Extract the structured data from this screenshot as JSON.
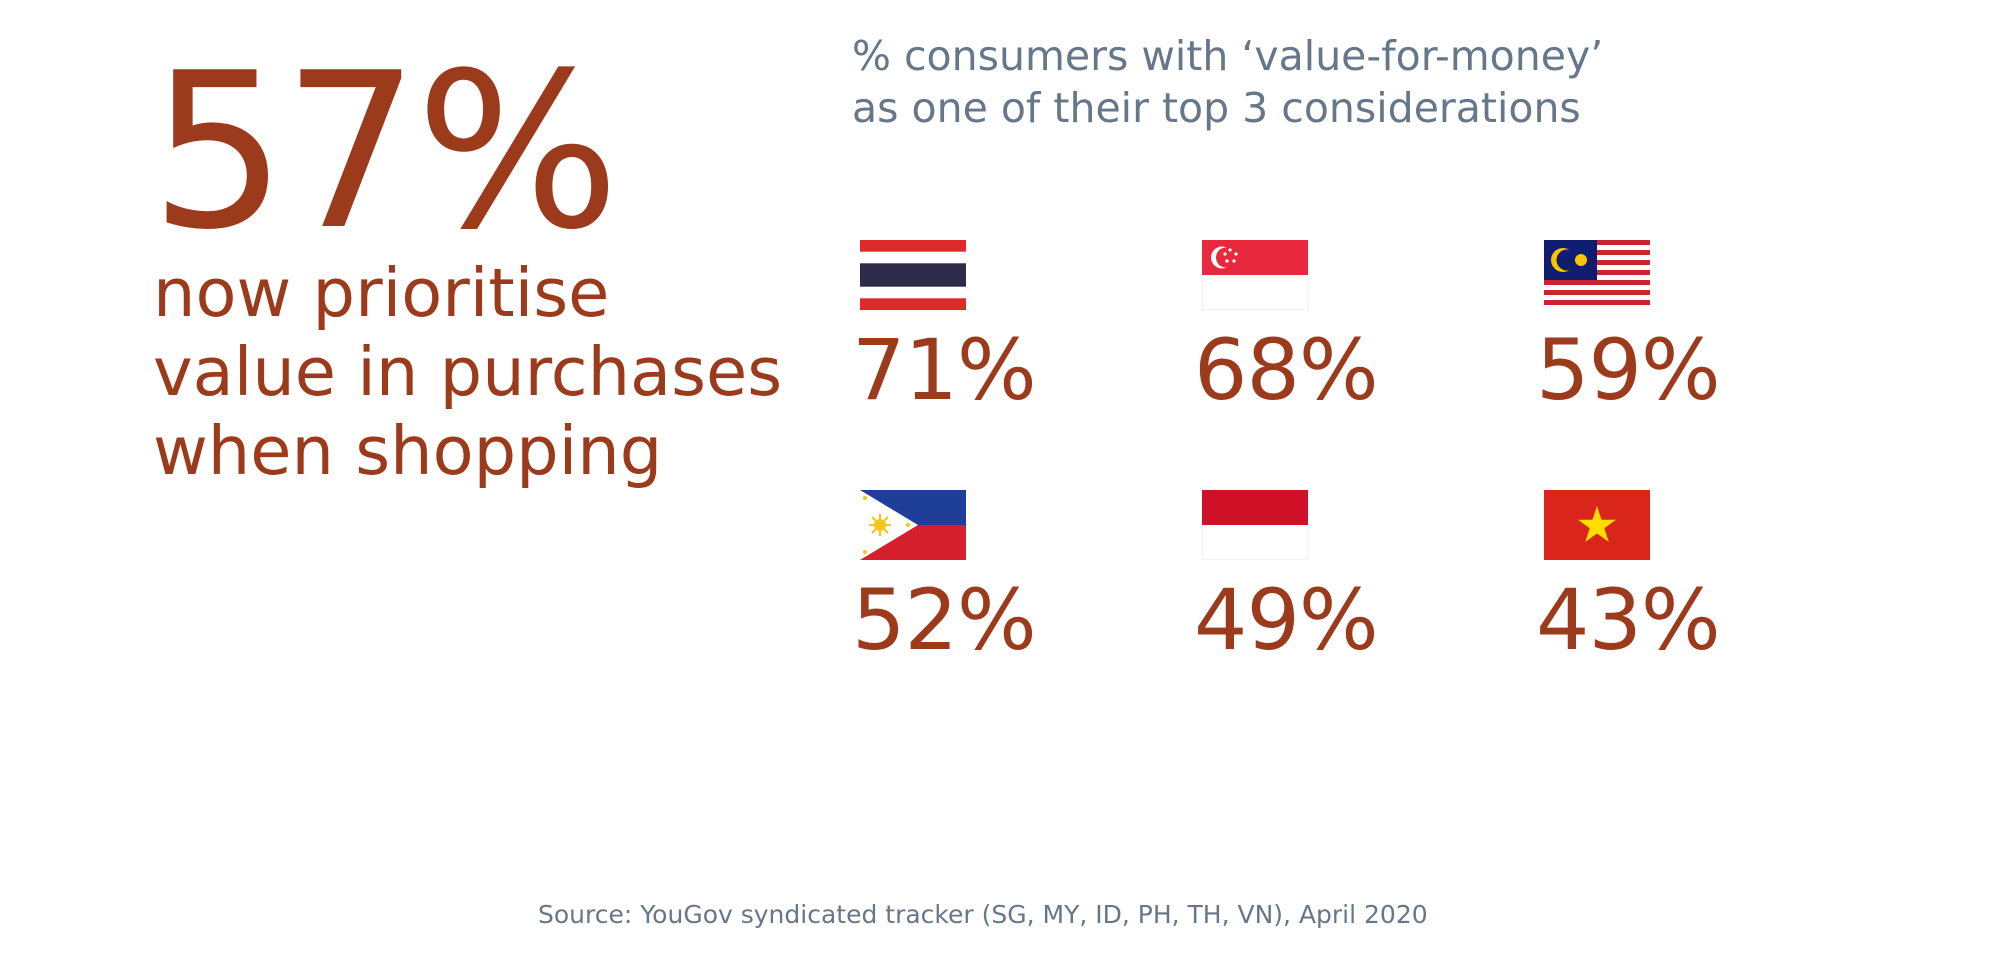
{
  "headline": {
    "stat": "57%",
    "lines": [
      "now prioritise",
      "value in purchases",
      "when shopping"
    ]
  },
  "subtitle": {
    "lines": [
      "% consumers with ‘value-for-money’",
      "as one of their top 3 considerations"
    ]
  },
  "countries": [
    {
      "flag_icon": "thailand-flag-icon",
      "value": "71%"
    },
    {
      "flag_icon": "singapore-flag-icon",
      "value": "68%"
    },
    {
      "flag_icon": "malaysia-flag-icon",
      "value": "59%"
    },
    {
      "flag_icon": "philippines-flag-icon",
      "value": "52%"
    },
    {
      "flag_icon": "indonesia-flag-icon",
      "value": "49%"
    },
    {
      "flag_icon": "vietnam-flag-icon",
      "value": "43%"
    }
  ],
  "source": "Source: YouGov syndicated tracker (SG, MY, ID, PH, TH, VN), April 2020",
  "colors": {
    "accent": "#9c3a1c",
    "muted_text": "#67778a",
    "background": "#ffffff"
  }
}
